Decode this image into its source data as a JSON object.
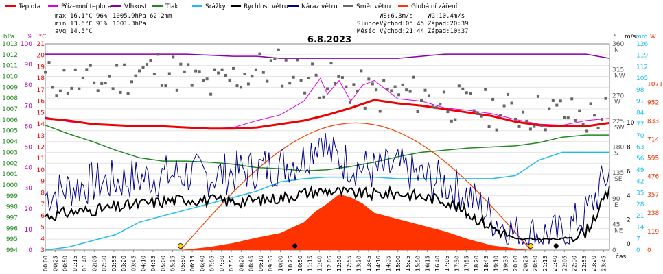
{
  "chart_data": {
    "type": "line",
    "title": "6.8.2023",
    "legend": [
      {
        "name": "Teplota",
        "color": "#ee0000"
      },
      {
        "name": "Přízemní teplota",
        "color": "#dd00dd"
      },
      {
        "name": "Vlhkost",
        "color": "#8800aa"
      },
      {
        "name": "Tlak",
        "color": "#228822"
      },
      {
        "name": "Srážky",
        "color": "#22bbee"
      },
      {
        "name": "Rychlost větru",
        "color": "#000000"
      },
      {
        "name": "Náraz větru",
        "color": "#000088"
      },
      {
        "name": "Směr větru",
        "color": "#666666"
      },
      {
        "name": "Globální záření",
        "color": "#ff3300"
      }
    ],
    "stats": {
      "max_label": "max",
      "max_temp": "16.1°C",
      "max_hum": "96%",
      "max_press": "1005.9hPa",
      "rain": "62.2mm",
      "min_label": "min",
      "min_temp": "13.6°C",
      "min_hum": "91%",
      "min_press": "1001.3hPa",
      "avg_label": "avg",
      "avg_temp": "14.5°C",
      "ws": "WS:6.3m/s",
      "wg": "WG:10.4m/s",
      "sun_label": "Slunce",
      "sunrise": "Východ:05:45",
      "sunset": "Západ:20:39",
      "moon_label": "Měsíc",
      "moonrise": "Východ:21:44",
      "moonset": "Západ:10:37"
    },
    "axes": {
      "hpa_unit": "hPa",
      "pct_unit": "%",
      "c_unit": "°C",
      "deg_unit": "°",
      "ms_unit": "m/s",
      "mm_unit": "mm",
      "w_unit": "W",
      "x_unit": "čas",
      "hpa_ticks": [
        "1013",
        "1012",
        "1011",
        "1010",
        "1009",
        "1008",
        "1007",
        "1006",
        "1005",
        "1004",
        "1003",
        "1002",
        "1001",
        "1000",
        "999",
        "998",
        "997",
        "996",
        "995",
        "994"
      ],
      "pct_ticks": [
        "100",
        "90",
        "80",
        "70",
        "60",
        "50",
        "40",
        "30",
        "20",
        "10",
        "0"
      ],
      "c_ticks": [
        "21",
        "20",
        "19",
        "18",
        "17",
        "16",
        "15",
        "14",
        "13",
        "12",
        "11",
        "10",
        "9",
        "8",
        "7",
        "6",
        "5",
        "4",
        "3"
      ],
      "deg_ticks": [
        {
          "v": "360",
          "d": "N"
        },
        {
          "v": "315",
          "d": "NW"
        },
        {
          "v": "270",
          "d": "W"
        },
        {
          "v": "225",
          "d": "SW"
        },
        {
          "v": "180",
          "d": "S"
        },
        {
          "v": "135",
          "d": "SE"
        },
        {
          "v": "90",
          "d": "E"
        },
        {
          "v": "45",
          "d": "NE"
        },
        {
          "v": "0",
          "d": ""
        }
      ],
      "ms_ticks": [
        "10",
        "8",
        "6",
        "4",
        "2",
        "0"
      ],
      "mm_ticks": [
        "126",
        "119",
        "112",
        "105",
        "98",
        "91",
        "84",
        "77",
        "70",
        "63",
        "56",
        "49",
        "42",
        "35",
        "28",
        "21",
        "14",
        "7",
        "0"
      ],
      "w_ticks": [
        "1071",
        "952",
        "833",
        "714",
        "595",
        "476",
        "357",
        "238",
        "119",
        "0"
      ],
      "x_ticks": [
        "00:00",
        "00:25",
        "00:50",
        "01:15",
        "01:40",
        "02:05",
        "02:30",
        "02:55",
        "03:20",
        "03:45",
        "04:10",
        "04:35",
        "05:00",
        "05:25",
        "05:50",
        "06:15",
        "06:40",
        "07:05",
        "07:30",
        "07:55",
        "08:20",
        "08:45",
        "09:10",
        "09:35",
        "10:00",
        "10:25",
        "10:50",
        "11:15",
        "11:40",
        "12:05",
        "12:30",
        "12:55",
        "13:20",
        "13:45",
        "14:10",
        "14:35",
        "15:00",
        "15:25",
        "15:50",
        "16:15",
        "16:40",
        "17:05",
        "17:30",
        "17:55",
        "18:20",
        "18:45",
        "19:10",
        "19:35",
        "20:00",
        "20:25",
        "20:50",
        "21:15",
        "21:40",
        "22:05",
        "22:30",
        "22:55",
        "23:20",
        "23:45"
      ]
    },
    "x_range_hours": [
      0,
      24
    ],
    "temperature_c": {
      "x": [
        0,
        1,
        2,
        3,
        4,
        5,
        6,
        7,
        8,
        9,
        10,
        11,
        12,
        13,
        14,
        15,
        16,
        17,
        18,
        19,
        20,
        21,
        22,
        23,
        24
      ],
      "y": [
        14.5,
        14.3,
        14.0,
        13.9,
        13.8,
        13.8,
        13.7,
        13.6,
        13.6,
        13.7,
        14.0,
        14.3,
        14.8,
        15.4,
        16.1,
        15.8,
        15.6,
        15.3,
        15.0,
        14.7,
        14.2,
        13.9,
        13.8,
        13.8,
        14.1
      ]
    },
    "ground_temperature_c": {
      "x": [
        0,
        1,
        2,
        3,
        4,
        5,
        6,
        7,
        8,
        9,
        10,
        11,
        11.7,
        12,
        12.5,
        13,
        13.5,
        14,
        15,
        16,
        17,
        18,
        19,
        20,
        21,
        22,
        23,
        24
      ],
      "y": [
        14.6,
        14.2,
        14.0,
        13.9,
        13.8,
        13.8,
        13.7,
        13.6,
        13.7,
        14.3,
        14.8,
        16.0,
        18.0,
        16.6,
        17.8,
        16.0,
        17.4,
        17.8,
        16.2,
        16.0,
        15.4,
        15.2,
        14.9,
        14.4,
        14.0,
        13.9,
        14.3,
        14.5
      ]
    },
    "humidity_pct": {
      "x": [
        0,
        2,
        4,
        6,
        8,
        9,
        10,
        11,
        12,
        13,
        14,
        15,
        16,
        17,
        18,
        19,
        20,
        21,
        22,
        23,
        24
      ],
      "y": [
        95,
        95,
        95,
        95,
        94,
        94,
        93,
        93,
        93,
        93,
        93,
        93,
        94,
        95,
        95,
        95,
        95,
        95,
        95,
        95,
        93
      ]
    },
    "pressure_hpa": {
      "x": [
        0,
        1,
        2,
        3,
        4,
        5,
        6,
        7,
        8,
        9,
        10,
        11,
        12,
        13,
        14,
        15,
        16,
        17,
        18,
        19,
        20,
        21,
        22,
        23,
        24
      ],
      "y": [
        1005.5,
        1004.7,
        1004.0,
        1003.2,
        1002.5,
        1002.2,
        1002.2,
        1002.1,
        1001.9,
        1001.6,
        1001.5,
        1001.3,
        1001.4,
        1001.7,
        1002.1,
        1002.6,
        1003.0,
        1003.2,
        1003.4,
        1003.5,
        1003.6,
        1003.9,
        1004.4,
        1004.6,
        1004.6
      ]
    },
    "rain_mm": {
      "x": [
        0,
        1,
        2,
        3,
        4,
        5,
        6,
        7,
        8,
        9,
        10,
        11,
        12,
        13,
        14,
        15,
        16,
        17,
        18,
        19,
        20,
        21,
        22,
        23,
        24
      ],
      "y": [
        0,
        2,
        6,
        10,
        18,
        22,
        26,
        30,
        34,
        38,
        44,
        46,
        47,
        47,
        47,
        46,
        46,
        46,
        46,
        46,
        48,
        58,
        63,
        63,
        63
      ]
    },
    "wind_speed_ms": {
      "x": [
        0,
        1,
        2,
        3,
        4,
        5,
        6,
        7,
        8,
        9,
        10,
        11,
        12,
        13,
        14,
        15,
        16,
        17,
        18,
        19,
        20,
        21,
        22,
        23,
        24
      ],
      "y": [
        2.3,
        2.6,
        2.8,
        3.0,
        3.3,
        3.5,
        3.7,
        3.6,
        3.5,
        3.6,
        3.8,
        4.2,
        4.4,
        4.2,
        4.1,
        4.2,
        3.9,
        3.6,
        2.5,
        1.4,
        0.4,
        0.4,
        0.4,
        1.0,
        4.4
      ]
    },
    "wind_gust_ms": {
      "x": [
        0,
        1,
        2,
        3,
        4,
        5,
        6,
        7,
        8,
        9,
        10,
        11,
        11.8,
        12,
        13,
        14,
        15,
        16,
        17,
        18,
        19,
        20,
        21,
        22,
        23,
        24
      ],
      "y": [
        4.0,
        4.6,
        5.0,
        5.2,
        5.4,
        5.6,
        5.8,
        5.6,
        5.9,
        6.2,
        6.5,
        7.0,
        9.2,
        7.5,
        6.6,
        6.0,
        6.3,
        5.5,
        5.0,
        4.0,
        2.2,
        0.8,
        0.8,
        0.8,
        2.5,
        6.0
      ]
    },
    "wind_direction_deg": {
      "x": [
        0,
        1,
        2,
        3,
        4,
        5,
        6,
        7,
        8,
        9,
        10,
        11,
        12,
        13,
        14,
        15,
        16,
        17,
        18,
        19,
        20,
        21,
        22,
        23,
        24
      ],
      "y": [
        300,
        295,
        290,
        300,
        310,
        320,
        300,
        285,
        300,
        315,
        320,
        305,
        295,
        285,
        270,
        275,
        270,
        260,
        250,
        245,
        240,
        240,
        240,
        230,
        240
      ]
    },
    "global_radiation_wm2": {
      "x": [
        5.75,
        7,
        8,
        9,
        10,
        11,
        11.5,
        12,
        12.5,
        13,
        13.5,
        14,
        15,
        16,
        17,
        18,
        19,
        20,
        20.65
      ],
      "y": [
        0,
        20,
        45,
        80,
        110,
        180,
        250,
        300,
        360,
        340,
        300,
        240,
        200,
        160,
        120,
        70,
        30,
        10,
        0
      ]
    }
  }
}
